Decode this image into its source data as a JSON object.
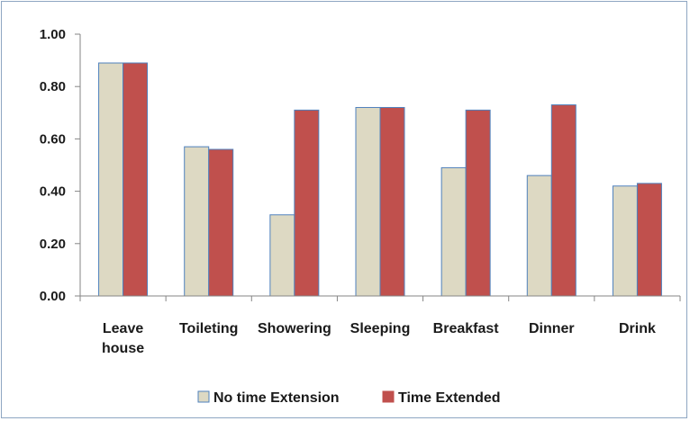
{
  "chart_data": {
    "type": "bar",
    "categories": [
      [
        "Leave",
        "house"
      ],
      [
        "Toileting"
      ],
      [
        "Showering"
      ],
      [
        "Sleeping"
      ],
      [
        "Breakfast"
      ],
      [
        "Dinner"
      ],
      [
        "Drink"
      ]
    ],
    "series": [
      {
        "name": "No time Extension",
        "color": "#ddd9c3",
        "values": [
          0.89,
          0.57,
          0.31,
          0.72,
          0.49,
          0.46,
          0.42
        ]
      },
      {
        "name": "Time Extended",
        "color": "#c0504d",
        "values": [
          0.89,
          0.56,
          0.71,
          0.72,
          0.71,
          0.73,
          0.43
        ]
      }
    ],
    "ylim": [
      0,
      1.0
    ],
    "yticks": [
      "0.00",
      "0.20",
      "0.40",
      "0.60",
      "0.80",
      "1.00"
    ],
    "title": "",
    "xlabel": "",
    "ylabel": "",
    "grid": false,
    "legend": "bottom",
    "bar_border_color": "#4f81bd"
  }
}
